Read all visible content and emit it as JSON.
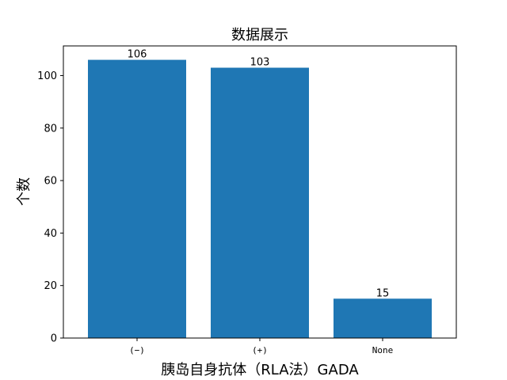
{
  "chart_data": {
    "type": "bar",
    "title": "数据展示",
    "xlabel": "胰岛自身抗体（RLA法）GADA",
    "ylabel": "个数",
    "categories": [
      "(−)",
      "(+)",
      "None"
    ],
    "values": [
      106,
      103,
      15
    ],
    "data_labels": [
      "106",
      "103",
      "15"
    ],
    "ylim": [
      0,
      111.3
    ],
    "yticks": [
      0,
      20,
      40,
      60,
      80,
      100
    ],
    "bar_color": "#1f77b4",
    "grid": false,
    "legend": "none"
  }
}
